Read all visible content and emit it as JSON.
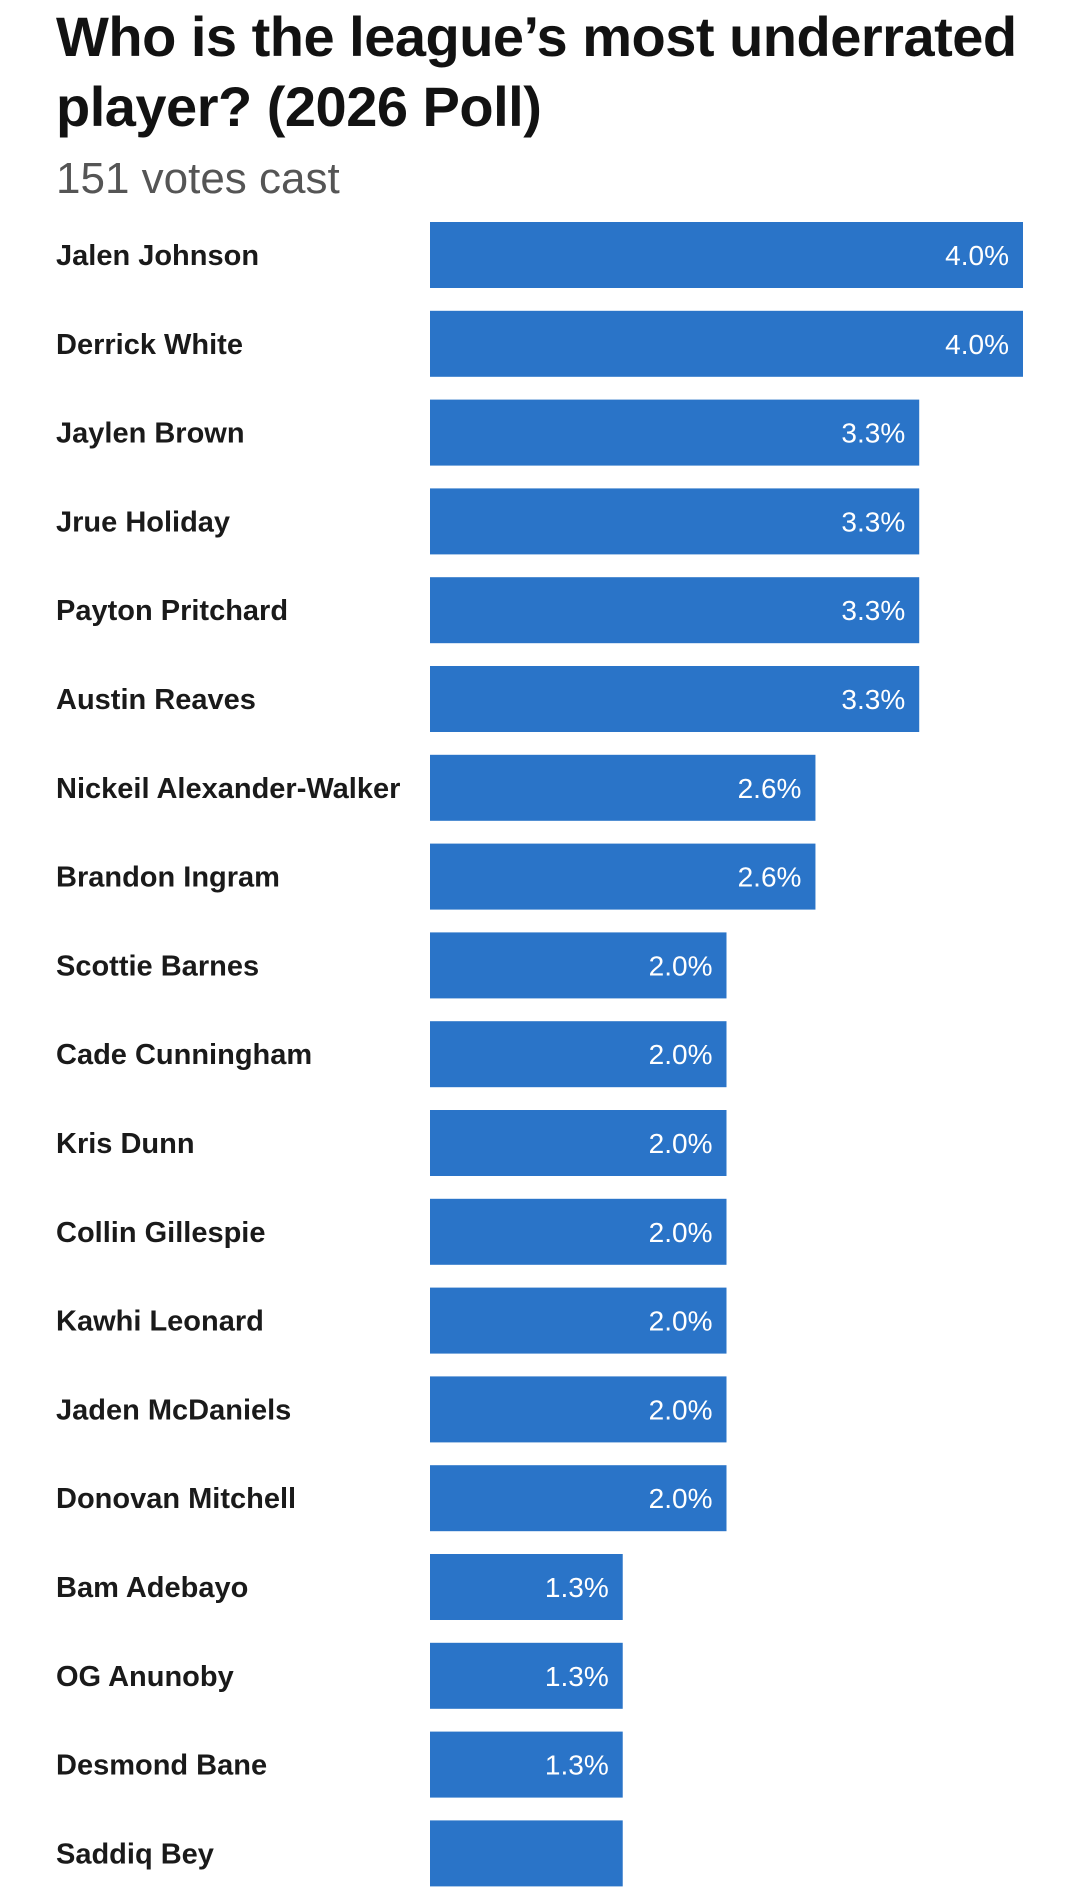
{
  "chart_data": {
    "type": "bar",
    "orientation": "horizontal",
    "title": "Who is the league’s most underrated player? (2026 Poll)",
    "subtitle": "151 votes cast",
    "xlim": [
      0,
      4.0
    ],
    "bar_color": "#2a74c8",
    "categories": [
      "Jalen Johnson",
      "Derrick White",
      "Jaylen Brown",
      "Jrue Holiday",
      "Payton Pritchard",
      "Austin Reaves",
      "Nickeil Alexander-Walker",
      "Brandon Ingram",
      "Scottie Barnes",
      "Cade Cunningham",
      "Kris Dunn",
      "Collin Gillespie",
      "Kawhi Leonard",
      "Jaden McDaniels",
      "Donovan Mitchell",
      "Bam Adebayo",
      "OG Anunoby",
      "Desmond Bane",
      "Saddiq Bey"
    ],
    "values": [
      4.0,
      4.0,
      3.3,
      3.3,
      3.3,
      3.3,
      2.6,
      2.6,
      2.0,
      2.0,
      2.0,
      2.0,
      2.0,
      2.0,
      2.0,
      1.3,
      1.3,
      1.3,
      1.3
    ],
    "value_labels": [
      "4.0%",
      "4.0%",
      "3.3%",
      "3.3%",
      "3.3%",
      "3.3%",
      "2.6%",
      "2.6%",
      "2.0%",
      "2.0%",
      "2.0%",
      "2.0%",
      "2.0%",
      "2.0%",
      "2.0%",
      "1.3%",
      "1.3%",
      "1.3%",
      ""
    ]
  }
}
